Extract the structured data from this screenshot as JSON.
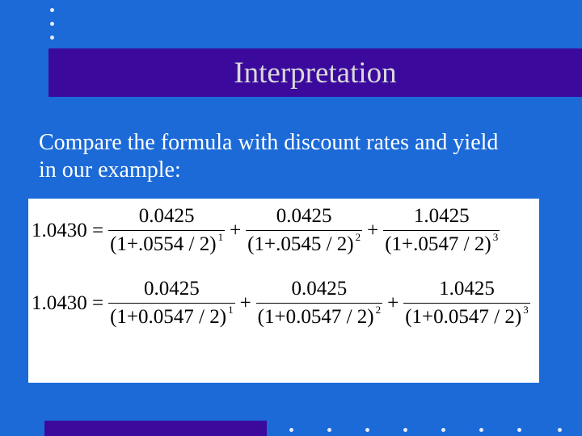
{
  "slide": {
    "title": "Interpretation",
    "body_line1": "Compare the formula with discount rates and yield",
    "body_line2": "in our example:"
  },
  "formulas": [
    {
      "lhs": "1.0430 =",
      "terms": [
        {
          "num": "0.0425",
          "den": "(1+.0554 / 2)",
          "exp": "1"
        },
        {
          "num": "0.0425",
          "den": "(1+.0545 / 2)",
          "exp": "2"
        },
        {
          "num": "1.0425",
          "den": "(1+.0547 / 2)",
          "exp": "3"
        }
      ],
      "op": "+"
    },
    {
      "lhs": "1.0430 =",
      "terms": [
        {
          "num": "0.0425",
          "den": "(1+0.0547 / 2)",
          "exp": "1"
        },
        {
          "num": "0.0425",
          "den": "(1+0.0547 / 2)",
          "exp": "2"
        },
        {
          "num": "1.0425",
          "den": "(1+0.0547 / 2)",
          "exp": "3"
        }
      ],
      "op": "+"
    }
  ],
  "colors": {
    "background": "#1b6ad8",
    "title_bar": "#3b0a9c",
    "title_text": "#d9d9d9",
    "formula_box": "#ffffff"
  }
}
